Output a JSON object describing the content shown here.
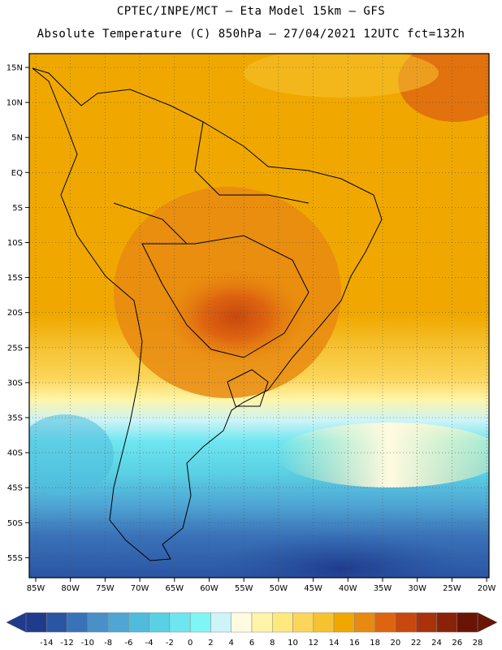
{
  "header": {
    "line1": "CPTEC/INPE/MCT –  Eta Model 15km – GFS",
    "line2": "Absolute Temperature (C) 850hPa – 27/04/2021 12UTC fct=132h"
  },
  "map": {
    "lat_labels": [
      "15N",
      "10N",
      "5N",
      "EQ",
      "5S",
      "10S",
      "15S",
      "20S",
      "25S",
      "30S",
      "35S",
      "40S",
      "45S",
      "50S",
      "55S"
    ],
    "lon_labels": [
      "85W",
      "80W",
      "75W",
      "70W",
      "65W",
      "60W",
      "55W",
      "50W",
      "45W",
      "40W",
      "35W",
      "30W",
      "25W",
      "20W"
    ]
  },
  "legend": {
    "labels": [
      "-14",
      "-12",
      "-10",
      "-8",
      "-6",
      "-4",
      "-2",
      "0",
      "2",
      "4",
      "6",
      "8",
      "10",
      "12",
      "14",
      "16",
      "18",
      "20",
      "22",
      "24",
      "26",
      "28"
    ],
    "colors": [
      "#1f3b8c",
      "#2a55a3",
      "#3a72b8",
      "#4a8fc8",
      "#4fa6d4",
      "#4fbcdc",
      "#5ad0e4",
      "#6ee6f0",
      "#7ef6f6",
      "#cdf4f8",
      "#fffae0",
      "#fff4a8",
      "#ffe97e",
      "#fbd65a",
      "#f5c232",
      "#f0a800",
      "#e88a10",
      "#de6410",
      "#c8480e",
      "#a8320a",
      "#8a2208",
      "#6a1406"
    ]
  }
}
